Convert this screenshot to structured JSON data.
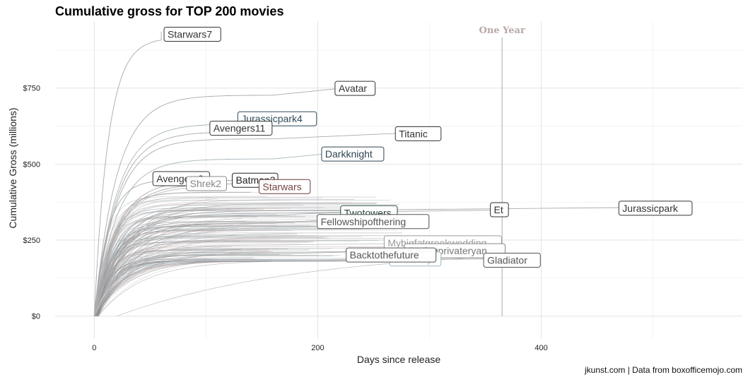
{
  "chart_data": {
    "type": "line",
    "title": "Cumulative gross for TOP 200 movies",
    "xlabel": "Days since release",
    "ylabel": "Cumulative Gross (millions)",
    "caption": "jkunst.com | Data from boxofficemojo.com",
    "xlim": [
      -35,
      580
    ],
    "ylim": [
      -75,
      970
    ],
    "x_ticks": [
      0,
      200,
      400
    ],
    "x_tick_labels": [
      "0",
      "200",
      "400"
    ],
    "y_ticks": [
      0,
      250,
      500,
      750
    ],
    "y_tick_labels": [
      "$0",
      "$250",
      "$500",
      "$750"
    ],
    "grid": true,
    "reference_line": {
      "x": 365,
      "label": "One Year"
    },
    "series": [
      {
        "name": "Starwars7",
        "days": 60,
        "gross": 936,
        "label_x": 65,
        "label_y": 927,
        "border": "#333333",
        "text": "#333333",
        "line": "#aaaaaa"
      },
      {
        "name": "Avatar",
        "days": 220,
        "gross": 749,
        "label_x": 218,
        "label_y": 749,
        "border": "#333333",
        "text": "#333333",
        "line": "#aaaaaa"
      },
      {
        "name": "Jurassicpark4",
        "days": 135,
        "gross": 652,
        "label_x": 131,
        "label_y": 649,
        "border": "#2f4a58",
        "text": "#2f4a58",
        "line": "#a8b4ba"
      },
      {
        "name": "Avengers11",
        "days": 110,
        "gross": 623,
        "label_x": 106,
        "label_y": 618,
        "border": "#333333",
        "text": "#333333",
        "line": "#aaaaaa"
      },
      {
        "name": "Titanic",
        "days": 270,
        "gross": 601,
        "label_x": 272,
        "label_y": 600,
        "border": "#333333",
        "text": "#333333",
        "line": "#aaaaaa"
      },
      {
        "name": "Darkknight",
        "days": 205,
        "gross": 533,
        "label_x": 206,
        "label_y": 533,
        "border": "#2d4450",
        "text": "#2d4450",
        "line": "#a8b4ba"
      },
      {
        "name": "Avengers2",
        "days": 60,
        "gross": 459,
        "label_x": 55,
        "label_y": 452,
        "border": "#333333",
        "text": "#333333",
        "line": "#aaaaaa"
      },
      {
        "name": "Shrek2",
        "days": 90,
        "gross": 436,
        "label_x": 85,
        "label_y": 436,
        "border": "#888888",
        "text": "#888888",
        "line": "#bbbbbb"
      },
      {
        "name": "Batman3",
        "days": 125,
        "gross": 448,
        "label_x": 126,
        "label_y": 447,
        "border": "#222222",
        "text": "#222222",
        "line": "#aaaaaa"
      },
      {
        "name": "Starwars",
        "days": 150,
        "gross": 461,
        "label_x": 150,
        "label_y": 426,
        "border": "#6d3a3a",
        "text": "#7a4545",
        "line": "#b9a7a7"
      },
      {
        "name": "Twotowers",
        "days": 225,
        "gross": 342,
        "label_x": 223,
        "label_y": 340,
        "border": "#2e4a42",
        "text": "#2e4a42",
        "line": "#a8b4ba"
      },
      {
        "name": "Fellowshipofthering",
        "days": 200,
        "gross": 315,
        "label_x": 202,
        "label_y": 311,
        "border": "#555555",
        "text": "#555555",
        "line": "#aaaaaa"
      },
      {
        "name": "Et",
        "days": 365,
        "gross": 349,
        "label_x": 357,
        "label_y": 350,
        "border": "#333333",
        "text": "#333333",
        "line": "#aaaaaa"
      },
      {
        "name": "Jurassicpark",
        "days": 470,
        "gross": 357,
        "label_x": 472,
        "label_y": 355,
        "border": "#333333",
        "text": "#333333",
        "line": "#aaaaaa"
      },
      {
        "name": "Mybigfatgreekwedding",
        "days": 330,
        "gross": 241,
        "label_x": 262,
        "label_y": 241,
        "border": "#9a9a9a",
        "text": "#9a9a9a",
        "line": "#c4c4c4"
      },
      {
        "name": "Savingprivateryan",
        "days": 300,
        "gross": 216,
        "label_x": 280,
        "label_y": 215,
        "border": "#888888",
        "text": "#777777",
        "line": "#bbbbbb"
      },
      {
        "name": "Gladiator",
        "days": 350,
        "gross": 188,
        "label_x": 351,
        "label_y": 184,
        "border": "#555555",
        "text": "#555555",
        "line": "#aaaaaa"
      },
      {
        "name": "Thestory",
        "days": 280,
        "gross": 190,
        "label_x": 267,
        "label_y": 188,
        "border": "#9fb7c3",
        "text": "#9fb7c3",
        "line": "#c5d2d8"
      },
      {
        "name": "Backtothefuture",
        "days": 230,
        "gross": 211,
        "label_x": 228,
        "label_y": 201,
        "border": "#555555",
        "text": "#555555",
        "line": "#aaaaaa"
      }
    ]
  }
}
